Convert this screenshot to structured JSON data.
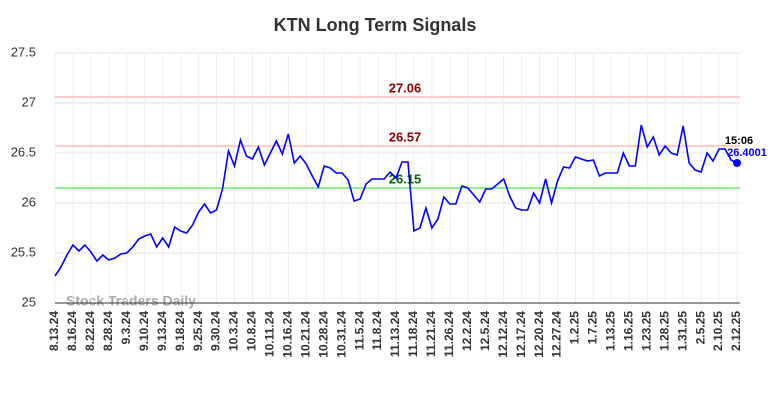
{
  "chart_data": {
    "type": "line",
    "title": "KTN Long Term Signals",
    "watermark": "Stock Traders Daily",
    "last_time": "15:06",
    "ylim": [
      25,
      27.5
    ],
    "yticks": [
      25,
      25.5,
      26,
      26.5,
      27,
      27.5
    ],
    "grid": true,
    "categories": [
      "8.13.24",
      null,
      null,
      "8.16.24",
      null,
      null,
      "8.22.24",
      null,
      null,
      "8.28.24",
      null,
      null,
      "9.3.24",
      null,
      null,
      "9.10.24",
      null,
      null,
      "9.13.24",
      null,
      null,
      "9.18.24",
      null,
      null,
      "9.25.24",
      null,
      null,
      "9.30.24",
      null,
      null,
      "10.3.24",
      null,
      null,
      "10.8.24",
      null,
      null,
      "10.11.24",
      null,
      null,
      "10.16.24",
      null,
      null,
      "10.21.24",
      null,
      null,
      "10.28.24",
      null,
      null,
      "10.31.24",
      null,
      null,
      "11.5.24",
      null,
      null,
      "11.8.24",
      null,
      null,
      "11.13.24",
      null,
      null,
      "11.18.24",
      null,
      null,
      "11.21.24",
      null,
      null,
      "11.26.24",
      null,
      null,
      "12.2.24",
      null,
      null,
      "12.5.24",
      null,
      null,
      "12.12.24",
      null,
      null,
      "12.17.24",
      null,
      null,
      "12.20.24",
      null,
      null,
      "12.27.24",
      null,
      null,
      "1.2.25",
      null,
      null,
      "1.7.25",
      null,
      null,
      "1.13.25",
      null,
      null,
      "1.16.25",
      null,
      null,
      "1.23.25",
      null,
      null,
      "1.28.25",
      null,
      null,
      "1.31.25",
      null,
      null,
      "2.5.25",
      null,
      null,
      "2.10.25",
      null,
      null,
      "2.12.25"
    ],
    "series": [
      {
        "name": "KTN",
        "color": "#0000ff",
        "values": [
          25.27,
          25.36,
          25.48,
          25.58,
          25.52,
          25.58,
          25.51,
          25.42,
          25.48,
          25.43,
          25.45,
          25.49,
          25.5,
          25.56,
          25.64,
          25.67,
          25.69,
          25.56,
          25.65,
          25.56,
          25.76,
          25.72,
          25.7,
          25.78,
          25.91,
          25.99,
          25.9,
          25.93,
          26.14,
          26.52,
          26.37,
          26.63,
          26.47,
          26.44,
          26.56,
          26.38,
          26.5,
          26.62,
          26.49,
          26.69,
          26.4,
          26.47,
          26.39,
          26.27,
          26.16,
          26.37,
          26.35,
          26.3,
          26.3,
          26.23,
          26.02,
          26.04,
          26.19,
          26.24,
          26.24,
          26.24,
          26.31,
          26.25,
          26.41,
          26.41,
          25.72,
          25.75,
          25.95,
          25.75,
          25.84,
          26.06,
          25.99,
          25.99,
          26.17,
          26.15,
          26.08,
          26.01,
          26.14,
          26.14,
          26.19,
          26.24,
          26.07,
          25.95,
          25.93,
          25.93,
          26.1,
          26.0,
          26.24,
          26.0,
          26.22,
          26.36,
          26.35,
          26.46,
          26.44,
          26.42,
          26.43,
          26.27,
          26.3,
          26.3,
          26.3,
          26.5,
          26.37,
          26.37,
          26.78,
          26.56,
          26.66,
          26.48,
          26.57,
          26.5,
          26.48,
          26.77,
          26.4,
          26.33,
          26.31,
          26.5,
          26.42,
          26.54,
          26.54,
          26.43,
          26.4001
        ]
      }
    ],
    "hlines": [
      {
        "value": 27.06,
        "color": "#ffcccc",
        "label_color": "#8b0000"
      },
      {
        "value": 26.57,
        "color": "#ffcccc",
        "label_color": "#8b0000"
      },
      {
        "value": 26.15,
        "color": "#90ee90",
        "label_color": "#006400"
      }
    ]
  }
}
